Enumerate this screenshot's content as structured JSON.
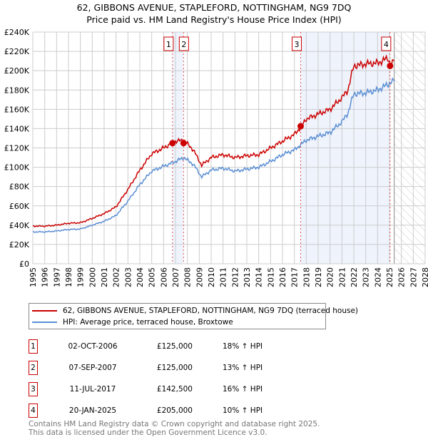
{
  "title": "62, GIBBONS AVENUE, STAPLEFORD, NOTTINGHAM, NG9 7DQ",
  "subtitle": "Price paid vs. HM Land Registry's House Price Index (HPI)",
  "chart_data": {
    "type": "line",
    "ylim": [
      0,
      240000
    ],
    "xlim": [
      1995,
      2028
    ],
    "y_ticks": [
      "£0",
      "£20K",
      "£40K",
      "£60K",
      "£80K",
      "£100K",
      "£120K",
      "£140K",
      "£160K",
      "£180K",
      "£200K",
      "£220K",
      "£240K"
    ],
    "x_ticks": [
      "1995",
      "1996",
      "1997",
      "1998",
      "1999",
      "2000",
      "2001",
      "2002",
      "2003",
      "2004",
      "2005",
      "2006",
      "2007",
      "2008",
      "2009",
      "2010",
      "2011",
      "2012",
      "2013",
      "2014",
      "2015",
      "2016",
      "2017",
      "2018",
      "2019",
      "2020",
      "2021",
      "2022",
      "2023",
      "2024",
      "2025",
      "2026",
      "2027",
      "2028"
    ],
    "forecast_start": 2025.4,
    "series": [
      {
        "name": "62, GIBBONS AVENUE, STAPLEFORD, NOTTINGHAM, NG9 7DQ (terraced house)",
        "color": "#cc0000",
        "x": [
          1995,
          1996,
          1997,
          1998,
          1999,
          2000,
          2001,
          2002,
          2003,
          2004,
          2005,
          2006,
          2007,
          2007.7,
          2008.5,
          2009.2,
          2010,
          2011,
          2012,
          2013,
          2014,
          2015,
          2016,
          2017,
          2017.6,
          2018,
          2019,
          2020,
          2021,
          2021.5,
          2022,
          2023,
          2024,
          2024.9,
          2025.1,
          2025.4
        ],
        "y": [
          39000,
          39000,
          40000,
          42000,
          42500,
          47000,
          52000,
          59000,
          77000,
          97000,
          114000,
          120000,
          127000,
          128000,
          118000,
          102000,
          110000,
          113000,
          110000,
          112000,
          113000,
          120000,
          127000,
          134000,
          142500,
          150000,
          155000,
          160000,
          172000,
          180000,
          205000,
          207000,
          208000,
          213000,
          205000,
          210000
        ]
      },
      {
        "name": "HPI: Average price, terraced house, Broxtowe",
        "color": "#5b8fd4",
        "x": [
          1995,
          1996,
          1997,
          1998,
          1999,
          2000,
          2001,
          2002,
          2003,
          2004,
          2005,
          2006,
          2007,
          2007.7,
          2008.5,
          2009.2,
          2010,
          2011,
          2012,
          2013,
          2014,
          2015,
          2016,
          2017,
          2017.6,
          2018,
          2019,
          2020,
          2021,
          2021.5,
          2022,
          2023,
          2024,
          2024.9,
          2025.1,
          2025.4
        ],
        "y": [
          33000,
          33000,
          34000,
          35500,
          36000,
          40000,
          44000,
          50000,
          65000,
          82000,
          96000,
          101000,
          106000,
          110000,
          103000,
          90000,
          97000,
          99000,
          96000,
          98000,
          100000,
          106000,
          113000,
          118000,
          124000,
          128000,
          132000,
          136000,
          147000,
          156000,
          176000,
          177000,
          180000,
          186000,
          188000,
          189000
        ]
      }
    ],
    "sales": [
      {
        "label": "1",
        "x": 2006.75,
        "y": 125000
      },
      {
        "label": "2",
        "x": 2007.68,
        "y": 125000
      },
      {
        "label": "3",
        "x": 2017.53,
        "y": 142500
      },
      {
        "label": "4",
        "x": 2025.05,
        "y": 205000
      }
    ],
    "shaded": [
      [
        2006.75,
        2007.68
      ],
      [
        2017.53,
        2025.05
      ]
    ]
  },
  "legend": {
    "property": "62, GIBBONS AVENUE, STAPLEFORD, NOTTINGHAM, NG9 7DQ (terraced house)",
    "hpi": "HPI: Average price, terraced house, Broxtowe"
  },
  "colors": {
    "property": "#cc0000",
    "hpi": "#5b8fd4",
    "shade": "#eef3fc"
  },
  "sales_table": [
    {
      "num": "1",
      "date": "02-OCT-2006",
      "price": "£125,000",
      "hpi": "18% ↑ HPI"
    },
    {
      "num": "2",
      "date": "07-SEP-2007",
      "price": "£125,000",
      "hpi": "13% ↑ HPI"
    },
    {
      "num": "3",
      "date": "11-JUL-2017",
      "price": "£142,500",
      "hpi": "16% ↑ HPI"
    },
    {
      "num": "4",
      "date": "20-JAN-2025",
      "price": "£205,000",
      "hpi": "10% ↑ HPI"
    }
  ],
  "footer": {
    "line1": "Contains HM Land Registry data © Crown copyright and database right 2025.",
    "line2": "This data is licensed under the Open Government Licence v3.0."
  }
}
